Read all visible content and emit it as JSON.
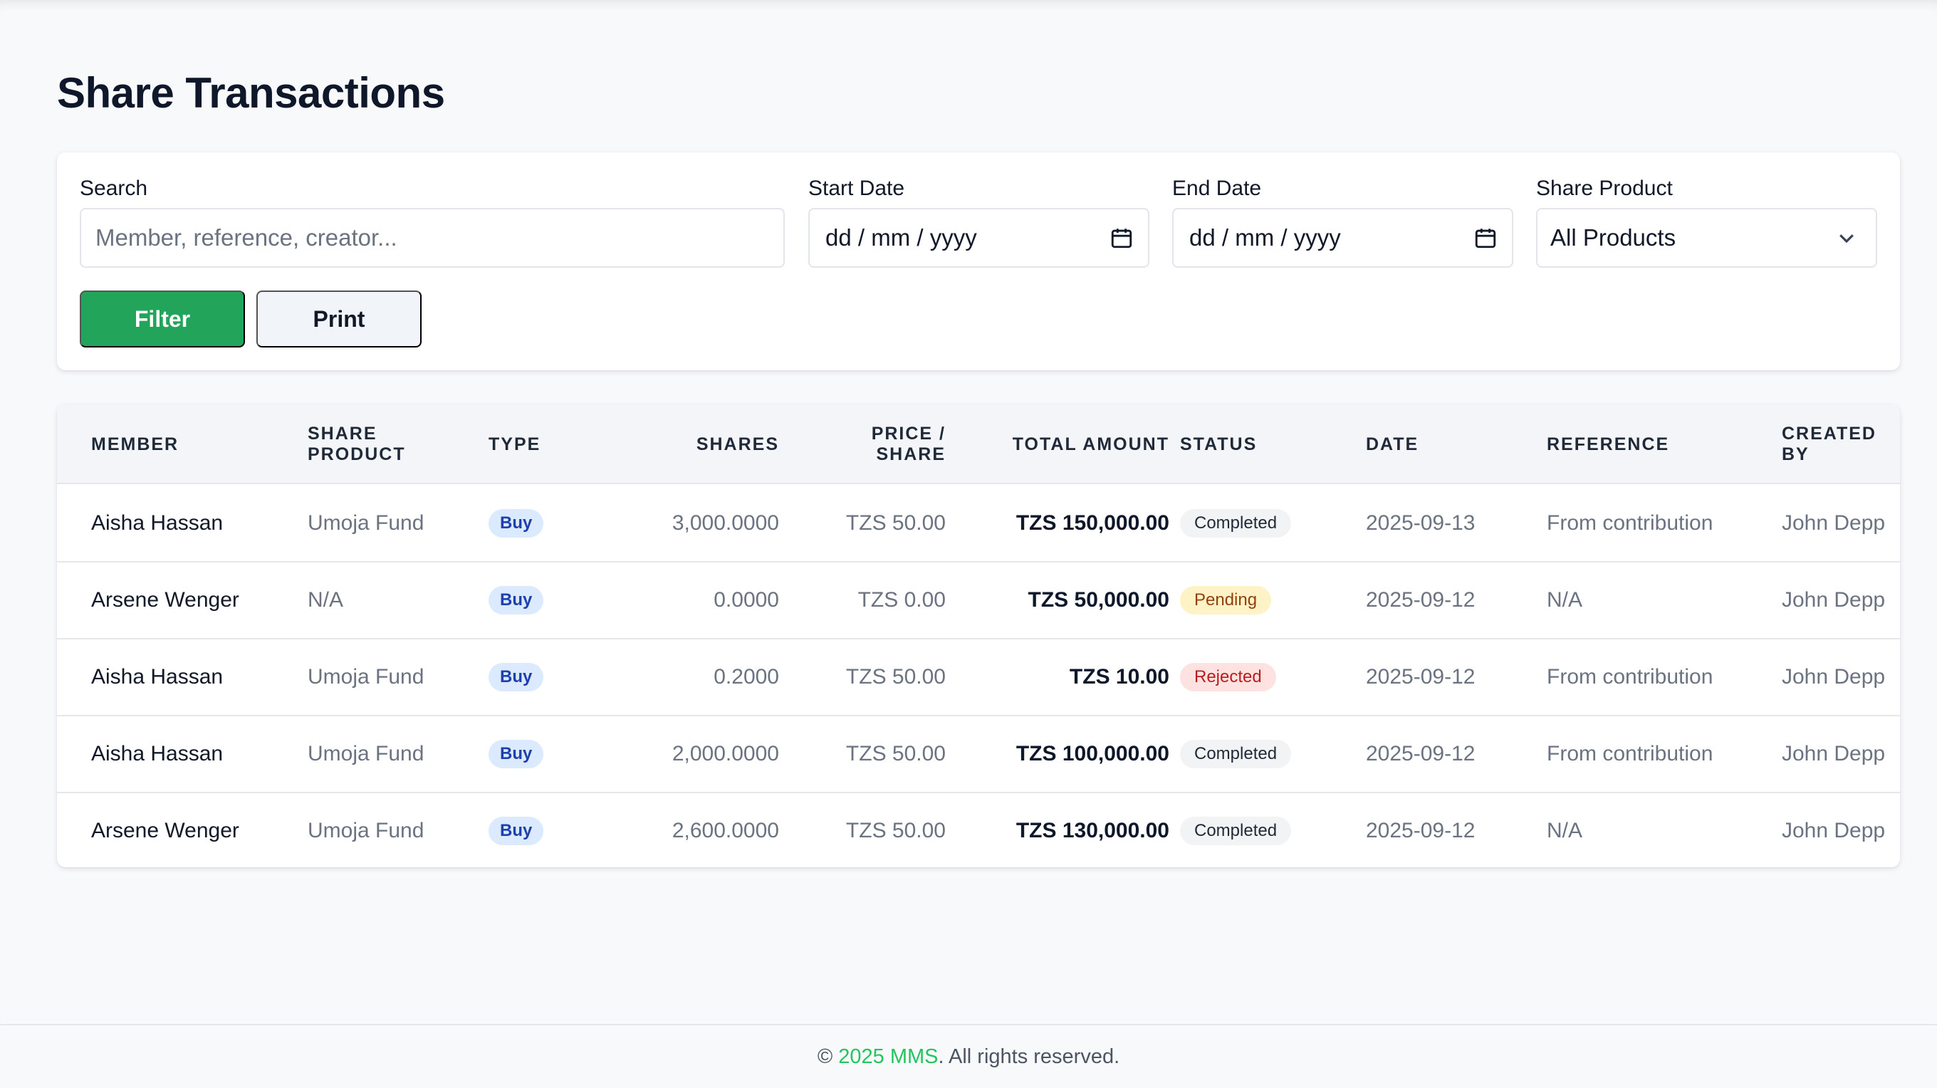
{
  "page": {
    "title": "Share Transactions"
  },
  "filters": {
    "search": {
      "label": "Search",
      "placeholder": "Member, reference, creator..."
    },
    "start_date": {
      "label": "Start Date",
      "placeholder": "dd / mm / yyyy",
      "icon": "calendar-icon"
    },
    "end_date": {
      "label": "End Date",
      "placeholder": "dd / mm / yyyy",
      "icon": "calendar-icon"
    },
    "share_product": {
      "label": "Share Product",
      "selected": "All Products",
      "icon": "chevron-down-icon"
    },
    "filter_button": "Filter",
    "print_button": "Print"
  },
  "table": {
    "headers": {
      "member": "MEMBER",
      "share_product_1": "SHARE",
      "share_product_2": "PRODUCT",
      "type": "TYPE",
      "shares": "SHARES",
      "price_1": "PRICE /",
      "price_2": "SHARE",
      "total_amount": "TOTAL AMOUNT",
      "status": "STATUS",
      "date": "DATE",
      "reference": "REFERENCE",
      "created_by_1": "CREATED",
      "created_by_2": "BY"
    },
    "rows": [
      {
        "member": "Aisha Hassan",
        "product": "Umoja Fund",
        "type": "Buy",
        "shares": "3,000.0000",
        "price": "TZS 50.00",
        "total": "TZS 150,000.00",
        "status": "Completed",
        "date": "2025-09-13",
        "reference": "From contribution",
        "created_by": "John Depp"
      },
      {
        "member": "Arsene Wenger",
        "product": "N/A",
        "type": "Buy",
        "shares": "0.0000",
        "price": "TZS 0.00",
        "total": "TZS 50,000.00",
        "status": "Pending",
        "date": "2025-09-12",
        "reference": "N/A",
        "created_by": "John Depp"
      },
      {
        "member": "Aisha Hassan",
        "product": "Umoja Fund",
        "type": "Buy",
        "shares": "0.2000",
        "price": "TZS 50.00",
        "total": "TZS 10.00",
        "status": "Rejected",
        "date": "2025-09-12",
        "reference": "From contribution",
        "created_by": "John Depp"
      },
      {
        "member": "Aisha Hassan",
        "product": "Umoja Fund",
        "type": "Buy",
        "shares": "2,000.0000",
        "price": "TZS 50.00",
        "total": "TZS 100,000.00",
        "status": "Completed",
        "date": "2025-09-12",
        "reference": "From contribution",
        "created_by": "John Depp"
      },
      {
        "member": "Arsene Wenger",
        "product": "Umoja Fund",
        "type": "Buy",
        "shares": "2,600.0000",
        "price": "TZS 50.00",
        "total": "TZS 130,000.00",
        "status": "Completed",
        "date": "2025-09-12",
        "reference": "N/A",
        "created_by": "John Depp"
      }
    ]
  },
  "footer": {
    "copyright": "©",
    "brand": "2025 MMS",
    "rest": ". All rights reserved."
  },
  "colors": {
    "accent": "#22a55a",
    "brand_text": "#22c55e",
    "pending": "#fef3c7",
    "rejected": "#fee2e2"
  }
}
